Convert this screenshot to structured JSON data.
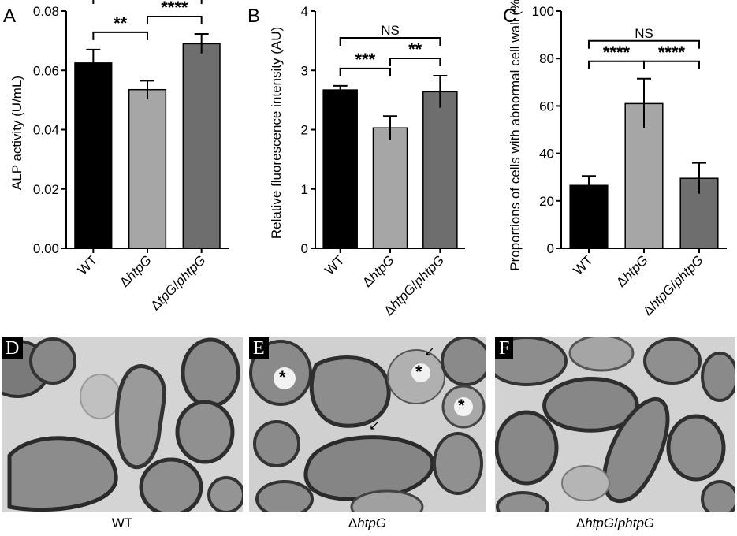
{
  "chart_data": [
    {
      "panel_label": "A",
      "type": "bar",
      "ylabel": "ALP activity (U/mL)",
      "ylim": [
        0,
        0.08
      ],
      "yticks": [
        "0.00",
        "0.02",
        "0.04",
        "0.06",
        "0.08"
      ],
      "categories": [
        {
          "prefix": "Δ",
          "italic": "tpG",
          "sep": "/",
          "italic2": "phtpG",
          "plain": ""
        },
        {
          "prefix": "Δ",
          "italic": "htpG",
          "sep": "",
          "italic2": "",
          "plain": ""
        },
        {
          "prefix": "",
          "italic": "",
          "sep": "",
          "italic2": "",
          "plain": "WT"
        }
      ],
      "order": [
        2,
        1,
        0
      ],
      "values": [
        0.0625,
        0.0535,
        0.069
      ],
      "errors": [
        0.0045,
        0.003,
        0.0033
      ],
      "colors": [
        "#000000",
        "#a6a6a6",
        "#6e6e6e"
      ],
      "significance": [
        {
          "from": 0,
          "to": 1,
          "label": "**",
          "level": 0
        },
        {
          "from": 1,
          "to": 2,
          "label": "****",
          "level": 0
        },
        {
          "from": 0,
          "to": 2,
          "label": "*",
          "level": 1
        }
      ]
    },
    {
      "panel_label": "B",
      "type": "bar",
      "ylabel": "Relative fluorescence intensity (AU)",
      "ylim": [
        0,
        4
      ],
      "yticks": [
        "0",
        "1",
        "2",
        "3",
        "4"
      ],
      "categories": [
        {
          "prefix": "",
          "italic": "",
          "sep": "",
          "italic2": "",
          "plain": "WT"
        },
        {
          "prefix": "Δ",
          "italic": "htpG",
          "sep": "",
          "italic2": "",
          "plain": ""
        },
        {
          "prefix": "Δ",
          "italic": "htpG",
          "sep": "/",
          "italic2": "phtpG",
          "plain": ""
        }
      ],
      "order": [
        0,
        1,
        2
      ],
      "values": [
        2.67,
        2.03,
        2.64
      ],
      "errors": [
        0.07,
        0.2,
        0.27
      ],
      "colors": [
        "#000000",
        "#a6a6a6",
        "#6e6e6e"
      ],
      "significance": [
        {
          "from": 0,
          "to": 1,
          "label": "***",
          "level": 0
        },
        {
          "from": 1,
          "to": 2,
          "label": "**",
          "level": 0
        },
        {
          "from": 0,
          "to": 2,
          "label": "NS",
          "level": 1
        }
      ]
    },
    {
      "panel_label": "C",
      "type": "bar",
      "ylabel": "Proportions of cells with abnormal cell wall  (%)",
      "ylim": [
        0,
        100
      ],
      "yticks": [
        "0",
        "20",
        "40",
        "60",
        "80",
        "100"
      ],
      "categories": [
        {
          "prefix": "",
          "italic": "",
          "sep": "",
          "italic2": "",
          "plain": "WT"
        },
        {
          "prefix": "Δ",
          "italic": "htpG",
          "sep": "",
          "italic2": "",
          "plain": ""
        },
        {
          "prefix": "Δ",
          "italic": "htpG",
          "sep": "/",
          "italic2": "phtpG",
          "plain": ""
        }
      ],
      "order": [
        0,
        1,
        2
      ],
      "values": [
        26.5,
        61,
        29.5
      ],
      "errors": [
        4,
        10.5,
        6.5
      ],
      "colors": [
        "#000000",
        "#a6a6a6",
        "#6e6e6e"
      ],
      "significance": [
        {
          "from": 0,
          "to": 1,
          "label": "****",
          "level": 0
        },
        {
          "from": 1,
          "to": 2,
          "label": "****",
          "level": 0
        },
        {
          "from": 0,
          "to": 2,
          "label": "NS",
          "level": 1
        }
      ]
    }
  ],
  "images": [
    {
      "label": "D",
      "caption_prefix": "",
      "caption_italic": "",
      "caption_sep": "",
      "caption_italic2": "",
      "caption_plain": "WT"
    },
    {
      "label": "E",
      "caption_prefix": "Δ",
      "caption_italic": "htpG",
      "caption_sep": "",
      "caption_italic2": "",
      "caption_plain": ""
    },
    {
      "label": "F",
      "caption_prefix": "Δ",
      "caption_italic": "htpG",
      "caption_sep": "/",
      "caption_italic2": "phtpG",
      "caption_plain": ""
    }
  ],
  "colors": {
    "background": "#ffffff",
    "micrograph_base": "#d6d6d6",
    "cell_wall": "#3a3a3a",
    "cell_fill": "#8a8a8a"
  },
  "icons": [
    "asterisk-marker",
    "arrow-marker"
  ]
}
